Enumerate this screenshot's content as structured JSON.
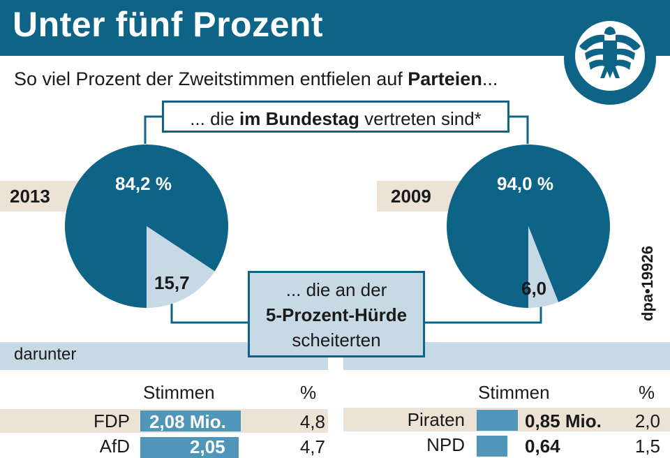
{
  "title": "Unter fünf Prozent",
  "subtitle": {
    "prefix": "So viel Prozent der Zweitstimmen entfielen auf ",
    "bold": "Parteien",
    "suffix": "..."
  },
  "upper_box": {
    "prefix": "... die ",
    "bold": "im Bundestag",
    "suffix": " vertreten sind*"
  },
  "lower_box": {
    "line1": "... die an der",
    "line2": "5-Prozent-Hürde",
    "line3": "scheiterten"
  },
  "credit": "dpa•19926",
  "darunter": "darunter",
  "colors": {
    "header": "#0e6487",
    "pie_main": "#0e6487",
    "pie_small": "#c7d9e5",
    "bar": "#4f96b9",
    "band": "#ece2d6"
  },
  "logo_icon": "bundestag-eagle-icon",
  "chart_data": [
    {
      "type": "pie",
      "label": "2013",
      "slices": [
        {
          "value": 84.2,
          "label": "84,2 %"
        },
        {
          "value": 15.7,
          "label": "15,7"
        }
      ]
    },
    {
      "type": "pie",
      "label": "2009",
      "slices": [
        {
          "value": 94.0,
          "label": "94,0 %"
        },
        {
          "value": 6.0,
          "label": "6,0"
        }
      ]
    },
    {
      "type": "bar",
      "col_stimmen": "Stimmen",
      "col_pct": "%",
      "rows": [
        {
          "party": "FDP",
          "votes": 2.08,
          "votes_label": "2,08 Mio.",
          "pct": "4,8"
        },
        {
          "party": "AfD",
          "votes": 2.05,
          "votes_label": "2,05",
          "pct": "4,7"
        }
      ]
    },
    {
      "type": "bar",
      "col_stimmen": "Stimmen",
      "col_pct": "%",
      "rows": [
        {
          "party": "Piraten",
          "votes": 0.85,
          "votes_label": "0,85 Mio.",
          "pct": "2,0"
        },
        {
          "party": "NPD",
          "votes": 0.64,
          "votes_label": "0,64",
          "pct": "1,5"
        }
      ]
    }
  ]
}
